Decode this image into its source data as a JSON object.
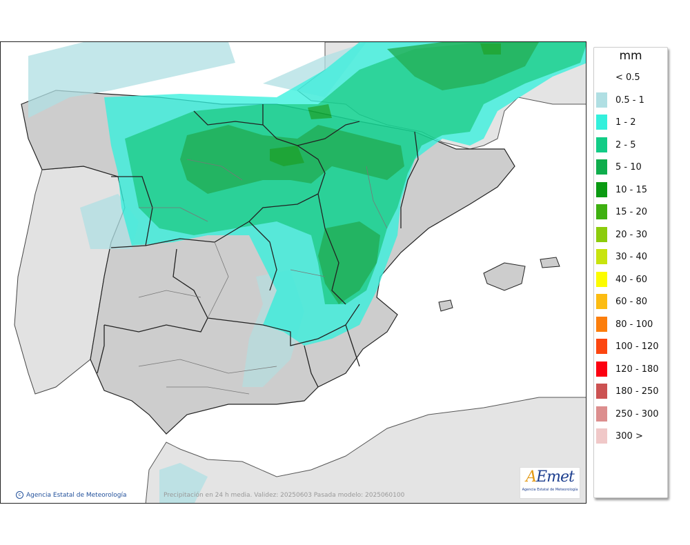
{
  "map": {
    "copyright_text": "Agencia Estatal de Meteorología",
    "caption": "Precipitación en 24 h media. Validez: 20250603 Pasada modelo: 2025060100",
    "logo_text": "AEmet",
    "logo_subtitle": "Agencia Estatal de Meteorología"
  },
  "legend": {
    "unit": "mm",
    "items": [
      {
        "label": "< 0.5",
        "color": ""
      },
      {
        "label": "0.5 - 1",
        "color": "#b0dfe3"
      },
      {
        "label": "1 - 2",
        "color": "#33f0dc"
      },
      {
        "label": "2 - 5",
        "color": "#12cc86"
      },
      {
        "label": "5 - 10",
        "color": "#0fad4c"
      },
      {
        "label": "10 - 15",
        "color": "#0a9a12"
      },
      {
        "label": "15 - 20",
        "color": "#3eb010"
      },
      {
        "label": "20 - 30",
        "color": "#8ccc0c"
      },
      {
        "label": "30 - 40",
        "color": "#c8e40e"
      },
      {
        "label": "40 - 60",
        "color": "#fcfc00"
      },
      {
        "label": "60 - 80",
        "color": "#fcbc12"
      },
      {
        "label": "80 - 100",
        "color": "#fc7e0c"
      },
      {
        "label": "100 - 120",
        "color": "#fc4610"
      },
      {
        "label": "120 - 180",
        "color": "#fc0010"
      },
      {
        "label": "180 - 250",
        "color": "#cc5252"
      },
      {
        "label": "250 - 300",
        "color": "#dc8e8e"
      },
      {
        "label": "300 >",
        "color": "#f0c8c8"
      }
    ]
  },
  "colors": {
    "land": "#cfcfcf",
    "foreign_land": "#e6e6e6",
    "sea": "#ffffff"
  }
}
